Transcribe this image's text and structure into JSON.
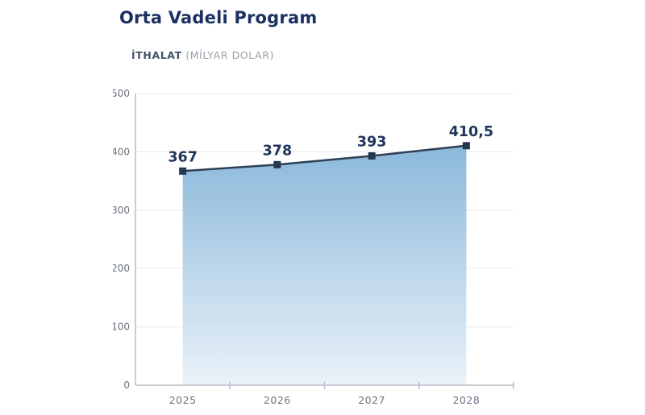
{
  "page": {
    "background": "#ffffff"
  },
  "header": {
    "title": "Orta Vadeli Program",
    "subtitle_bold": "İTHALAT",
    "subtitle_rest": " (MİLYAR DOLAR)"
  },
  "chart_data": {
    "type": "area",
    "title": "Orta Vadeli Program",
    "subtitle": "İTHALAT (MİLYAR DOLAR)",
    "categories": [
      "2025",
      "2026",
      "2027",
      "2028"
    ],
    "values": [
      367,
      378,
      393,
      410.5
    ],
    "value_labels": [
      "367",
      "378",
      "393",
      "410,5"
    ],
    "xlabel": "",
    "ylabel": "",
    "ylim": [
      0,
      500
    ],
    "y_ticks": [
      0,
      100,
      200,
      300,
      400,
      500
    ],
    "grid": true,
    "legend": false,
    "marker": "square",
    "colors": {
      "title": "#1b3162",
      "subtitle_bold": "#44546a",
      "subtitle_muted": "#9aa1ab",
      "line": "#2e3f55",
      "marker_fill": "#243852",
      "area_top": "#8bb8da",
      "area_bottom": "#eaf2f9",
      "grid": "#ededed",
      "axis": "#b9bec5",
      "tick_label": "#6b7280",
      "data_label": "#21365b"
    }
  }
}
